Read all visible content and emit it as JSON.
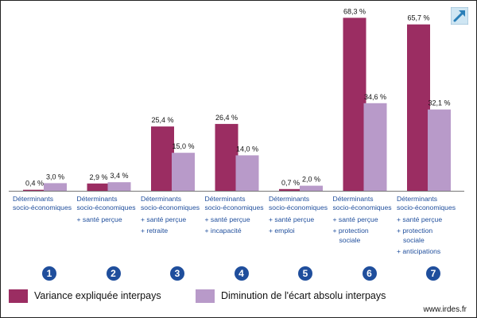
{
  "chart_data": {
    "type": "bar",
    "categories": [
      "1",
      "2",
      "3",
      "4",
      "5",
      "6",
      "7"
    ],
    "category_labels": [
      [
        "Déterminants",
        "socio-économiques"
      ],
      [
        "Déterminants",
        "socio-économiques",
        "+ santé perçue"
      ],
      [
        "Déterminants",
        "socio-économiques",
        "+ santé perçue",
        "+ retraite"
      ],
      [
        "Déterminants",
        "socio-économiques",
        "+ santé perçue",
        "+ incapacité"
      ],
      [
        "Déterminants",
        "socio-économiques",
        "+ santé perçue",
        "+ emploi"
      ],
      [
        "Déterminants",
        "socio-économiques",
        "+ santé perçue",
        "+ protection",
        "sociale"
      ],
      [
        "Déterminants",
        "socio-économiques",
        "+ santé perçue",
        "+ protection",
        "sociale",
        "+ anticipations"
      ]
    ],
    "series": [
      {
        "name": "Variance expliquée interpays",
        "color": "#9b2d62",
        "values": [
          0.4,
          2.9,
          25.4,
          26.4,
          0.7,
          68.3,
          65.7
        ],
        "labels": [
          "0,4 %",
          "2,9 %",
          "25,4 %",
          "26,4 %",
          "0,7 %",
          "68,3 %",
          "65,7 %"
        ]
      },
      {
        "name": "Diminution de l'écart absolu interpays",
        "color": "#b89ac9",
        "values": [
          3.0,
          3.4,
          15.0,
          14.0,
          2.0,
          34.6,
          32.1
        ],
        "labels": [
          "3,0 %",
          "3,4 %",
          "15,0 %",
          "14,0 %",
          "2,0 %",
          "34,6 %",
          "32,1 %"
        ]
      }
    ],
    "badges": [
      "❶",
      "❷",
      "❸",
      "❹",
      "❺",
      "❻",
      "❼"
    ],
    "ylim": [
      0,
      70
    ],
    "grid": false,
    "legend_position": "bottom-left",
    "source": "www.irdes.fr"
  },
  "icons": {
    "expand": "expand-arrow-icon"
  },
  "colors": {
    "label_text": "#1f4e9c",
    "axis": "#777777"
  }
}
